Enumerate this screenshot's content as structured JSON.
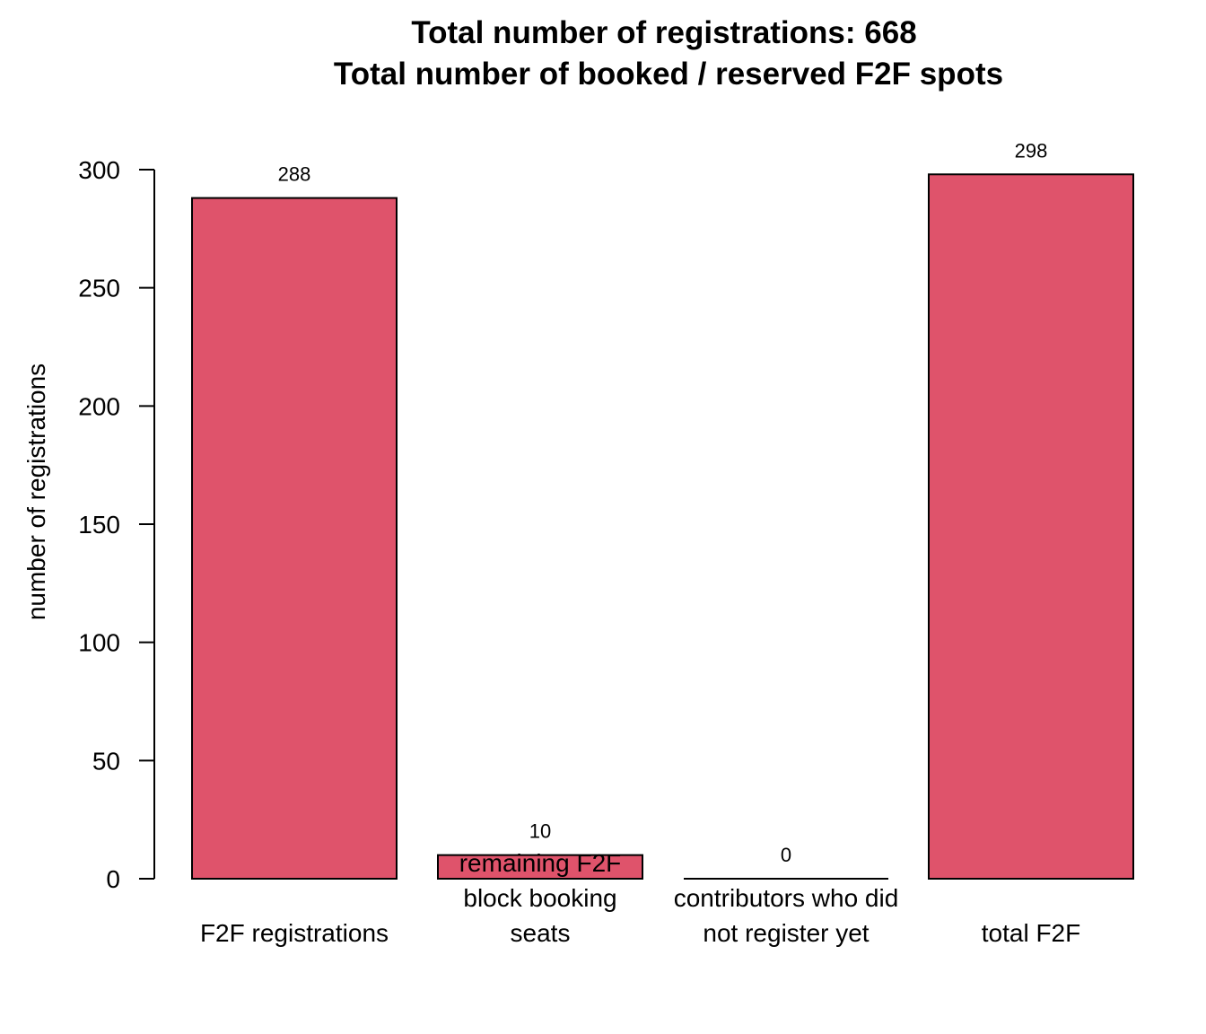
{
  "chart_data": {
    "type": "bar",
    "title_lines": [
      "Total number of registrations: 668",
      "Total number of booked / reserved F2F spots"
    ],
    "xlabel": "",
    "ylabel": "number of registrations",
    "categories": [
      [
        "F2F registrations"
      ],
      [
        "remaining F2F",
        "block booking",
        "seats"
      ],
      [
        "contributors who did",
        "not register yet"
      ],
      [
        "total F2F"
      ]
    ],
    "values": [
      288,
      10,
      0,
      298
    ],
    "value_labels": [
      "288",
      "10",
      "0",
      "298"
    ],
    "ylim": [
      0,
      300
    ],
    "yticks": [
      0,
      50,
      100,
      150,
      200,
      250,
      300
    ],
    "bar_color": "#DF536B",
    "edge_color": "#000000",
    "grid": false,
    "legend": "none"
  }
}
